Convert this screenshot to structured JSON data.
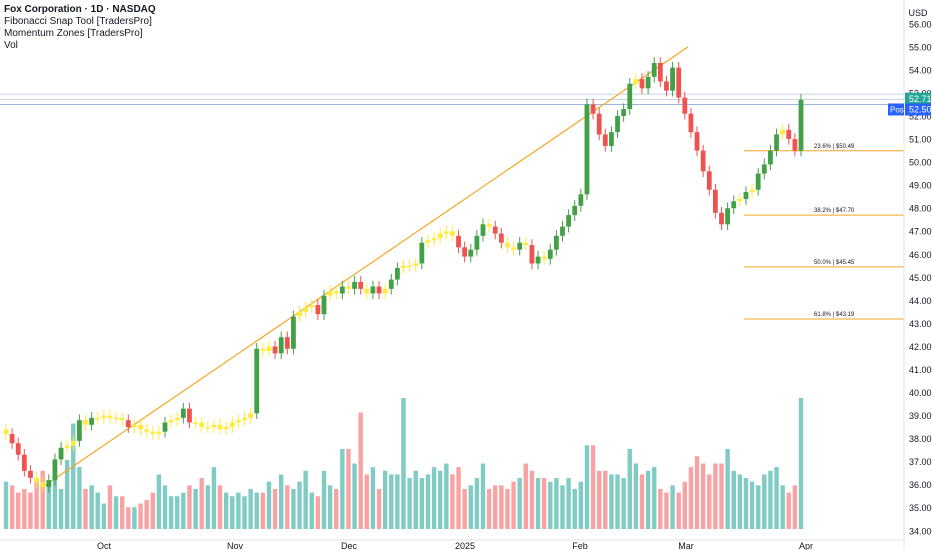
{
  "chart_data": {
    "type": "candlestick",
    "title": "Fox Corporation · 1D · NASDAQ",
    "indicators": [
      "Fibonacci Snap Tool [TradersPro]",
      "Momentum Zones [TradersPro]",
      "Vol"
    ],
    "currency_label": "USD",
    "xlabel": "",
    "ylabel": "",
    "ylim": [
      33.6,
      56.6
    ],
    "y_ticks": [
      34.0,
      35.0,
      36.0,
      37.0,
      38.0,
      39.0,
      40.0,
      41.0,
      42.0,
      43.0,
      44.0,
      45.0,
      46.0,
      47.0,
      48.0,
      49.0,
      50.0,
      51.0,
      52.0,
      53.0,
      54.0,
      55.0,
      56.0
    ],
    "x_ticks": [
      "Oct",
      "Nov",
      "Dec",
      "2025",
      "Feb",
      "Mar",
      "Apr"
    ],
    "price_labels": {
      "last": "52.71",
      "post_tag": "Post",
      "post": "52.50"
    },
    "fibonacci_levels": [
      {
        "label": "23.6% | $50.49",
        "price": 50.49
      },
      {
        "label": "38.2% | $47.70",
        "price": 47.7
      },
      {
        "label": "50.0% | $45.45",
        "price": 45.45
      },
      {
        "label": "61.8% | $43.19",
        "price": 43.19
      }
    ],
    "swing_line": {
      "from_price": 35.9,
      "to_price": 55.0
    },
    "candle_colors": {
      "bull": "#43a047",
      "bear": "#ef5350",
      "neutral": "#ffeb3b"
    },
    "volume_colors": {
      "up": "#80cbc4",
      "down": "#f7a3a3"
    },
    "closes": [
      38.2,
      37.8,
      37.3,
      36.6,
      36.3,
      36.1,
      35.9,
      36.2,
      37.1,
      37.6,
      37.7,
      37.9,
      38.8,
      38.6,
      38.9,
      38.9,
      39.0,
      38.9,
      38.9,
      38.8,
      38.5,
      38.6,
      38.4,
      38.3,
      38.2,
      38.3,
      38.7,
      38.8,
      38.9,
      39.3,
      38.7,
      38.7,
      38.5,
      38.5,
      38.6,
      38.4,
      38.5,
      38.7,
      38.8,
      38.9,
      39.1,
      41.9,
      41.8,
      42.0,
      41.7,
      42.4,
      41.9,
      43.3,
      43.5,
      43.7,
      43.8,
      43.4,
      44.2,
      44.4,
      44.3,
      44.6,
      44.5,
      44.8,
      44.5,
      44.3,
      44.6,
      44.3,
      44.5,
      44.9,
      45.4,
      45.5,
      45.5,
      45.6,
      46.5,
      46.6,
      46.7,
      46.9,
      47.0,
      46.8,
      46.3,
      45.9,
      46.2,
      46.8,
      47.3,
      47.2,
      46.9,
      46.5,
      46.3,
      46.2,
      46.5,
      46.4,
      45.6,
      45.9,
      45.8,
      46.2,
      46.8,
      47.2,
      47.7,
      48.1,
      48.6,
      52.5,
      52.1,
      51.2,
      50.7,
      51.3,
      52.0,
      52.3,
      53.4,
      53.6,
      53.2,
      53.7,
      54.3,
      53.5,
      53.1,
      54.1,
      52.8,
      52.1,
      51.3,
      50.5,
      49.6,
      48.8,
      47.8,
      47.3,
      48.0,
      48.3,
      48.4,
      48.7,
      48.8,
      49.5,
      49.9,
      50.5,
      51.2,
      51.4,
      51.0,
      50.5,
      52.7
    ],
    "volumes": [
      1.3,
      1.2,
      1.0,
      1.1,
      1.0,
      1.4,
      1.6,
      1.3,
      1.5,
      1.1,
      1.9,
      2.9,
      1.7,
      1.1,
      1.2,
      1.0,
      0.7,
      1.2,
      0.9,
      0.9,
      0.6,
      0.6,
      0.7,
      0.8,
      1.0,
      1.5,
      1.2,
      0.9,
      0.9,
      1.0,
      1.2,
      1.1,
      1.4,
      1.2,
      1.7,
      1.2,
      1.0,
      0.9,
      1.0,
      0.9,
      1.1,
      1.0,
      1.0,
      1.3,
      1.1,
      1.5,
      1.2,
      1.1,
      1.3,
      1.6,
      1.0,
      0.9,
      1.6,
      1.2,
      1.1,
      2.2,
      2.2,
      1.8,
      3.2,
      1.5,
      1.7,
      1.1,
      1.6,
      1.5,
      1.5,
      3.6,
      1.4,
      1.6,
      1.4,
      1.5,
      1.7,
      1.6,
      1.8,
      1.5,
      1.7,
      1.1,
      1.2,
      1.4,
      1.8,
      1.1,
      1.2,
      1.2,
      1.1,
      1.3,
      1.4,
      1.8,
      1.6,
      1.4,
      1.4,
      1.3,
      1.4,
      1.2,
      1.4,
      1.1,
      1.3,
      2.3,
      2.3,
      1.6,
      1.6,
      1.5,
      1.5,
      1.4,
      2.2,
      1.8,
      1.5,
      1.6,
      1.7,
      1.1,
      1.0,
      1.2,
      1.0,
      1.3,
      1.7,
      2.0,
      1.8,
      1.5,
      1.8,
      1.8,
      2.2,
      1.6,
      1.5,
      1.4,
      1.3,
      1.2,
      1.5,
      1.6,
      1.7,
      1.2,
      1.0,
      1.2,
      3.6
    ]
  },
  "axis_labels": {
    "price": "USD"
  }
}
